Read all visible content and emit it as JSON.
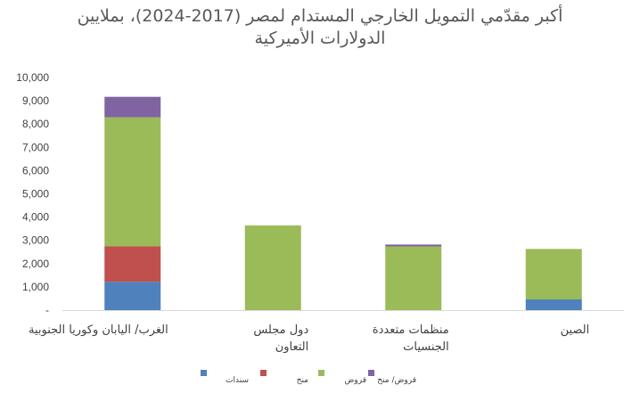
{
  "chart_data": {
    "type": "bar",
    "stacked": true,
    "title_lines": [
      "أكبر مقدّمي التمويل الخارجي المستدام لمصر (2017-2024)، بملايين",
      "الدولارات الأميركية"
    ],
    "categories": [
      [
        "الغرب/ اليابان وكوريا الجنوبية"
      ],
      [
        "دول مجلس",
        "التعاون"
      ],
      [
        "منظمات متعددة",
        "الجنسيات"
      ],
      [
        "الصين"
      ]
    ],
    "series": [
      {
        "name": "سندات",
        "color": "#4f81bd",
        "values": [
          1220,
          0,
          0,
          460
        ]
      },
      {
        "name": "منح",
        "color": "#c0504d",
        "values": [
          1520,
          0,
          0,
          0
        ]
      },
      {
        "name": "قروض",
        "color": "#9bbb59",
        "values": [
          5550,
          3640,
          2740,
          2170
        ]
      },
      {
        "name": "قروض/ منح",
        "color": "#8064a2",
        "values": [
          880,
          0,
          80,
          0
        ]
      }
    ],
    "yticks": [
      "-",
      "1,000",
      "2,000",
      "3,000",
      "4,000",
      "5,000",
      "6,000",
      "7,000",
      "8,000",
      "9,000",
      "10,000"
    ],
    "ylim": [
      0,
      10000
    ],
    "grid": false,
    "legend_position": "bottom"
  }
}
